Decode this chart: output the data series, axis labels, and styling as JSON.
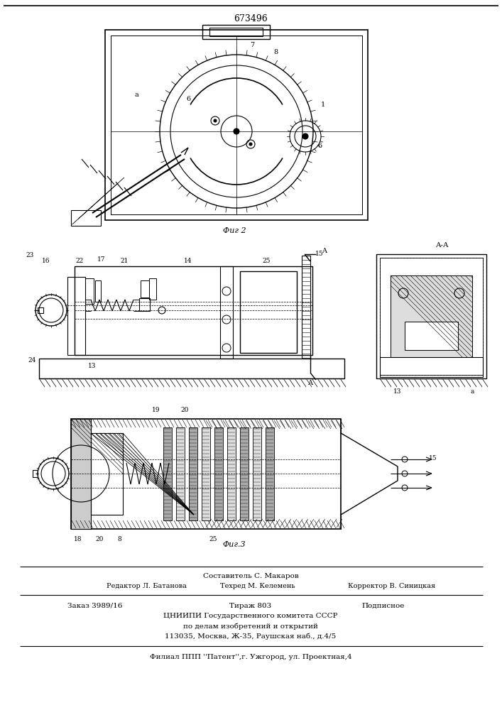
{
  "patent_number": "673496",
  "bg": "#ffffff",
  "lc": "#000000",
  "fig2_caption": "Фиг 2",
  "fig3_caption": "Фиг.3",
  "footer_col1": "Редактор Л. Батанова",
  "footer_col2": "Техред М. Келемень",
  "footer_col3": "Корректор В. Синицкая",
  "footer_author": "Составитель С. Макаров",
  "footer_order": "Заказ 3989/16",
  "footer_tirazh": "Тираж 803",
  "footer_podp": "Подписное",
  "footer_org1": "ЦНИИПИ Государственного комитета СССР",
  "footer_org2": "по делам изобретений и открытий",
  "footer_org3": "113035, Москва, Ж-35, Раушская наб., д.4/5",
  "footer_patent": "Филиал ППП ''Патент'',г. Ужгород, ул. Проектная,4"
}
